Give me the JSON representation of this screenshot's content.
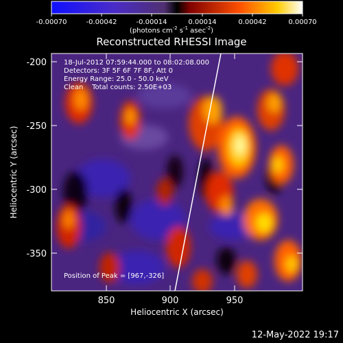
{
  "colorbar": {
    "tick_labels": [
      "-0.00070",
      "-0.00042",
      "-0.00014",
      "0.00014",
      "0.00042",
      "0.00070"
    ],
    "units_main": "(photons cm",
    "units_exp1": "-2",
    "units_mid1": " s",
    "units_exp2": "-1",
    "units_mid2": " asec",
    "units_exp3": "-2",
    "units_end": ")"
  },
  "title": "Reconstructed RHESSI Image",
  "annotations": {
    "line1": "18-Jul-2012 07:59:44.000 to 08:02:08.000",
    "line2": "Detectors: 3F 5F 6F 7F 8F, Att 0",
    "line3": "Energy Range: 25.0 - 50.0 keV",
    "line4": "Clean    Total counts: 2.50E+03",
    "peak": "Position of Peak = [967,-326]"
  },
  "axes": {
    "xlabel": "Heliocentric X (arcsec)",
    "ylabel": "Heliocentric Y (arcsec)",
    "xticks": [
      "850",
      "900",
      "950"
    ],
    "yticks": [
      "-200",
      "-250",
      "-300",
      "-350"
    ]
  },
  "footer": {
    "timestamp": "12-May-2022 19:17"
  },
  "colors": {
    "background": "#000000",
    "text": "#ffffff"
  }
}
